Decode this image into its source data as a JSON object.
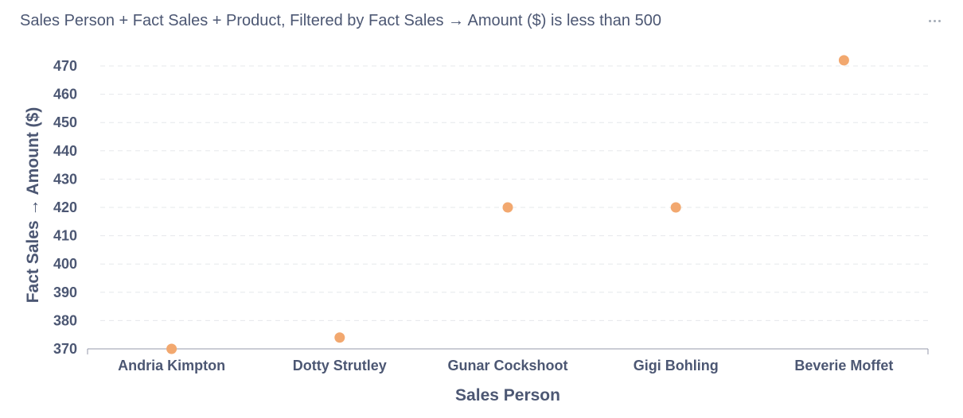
{
  "card": {
    "title": "Sales Person + Fact Sales + Product, Filtered by Fact Sales → Amount ($) is less than 500",
    "menu_icon": "more-horizontal-icon"
  },
  "chart_data": {
    "type": "scatter",
    "title": "Sales Person + Fact Sales + Product, Filtered by Fact Sales → Amount ($) is less than 500",
    "xlabel": "Sales Person",
    "ylabel": "Fact Sales → Amount ($)",
    "categories": [
      "Andria Kimpton",
      "Dotty Strutley",
      "Gunar Cockshoot",
      "Gigi Bohling",
      "Beverie Moffet"
    ],
    "values": [
      370,
      374,
      420,
      420,
      472
    ],
    "ylim": [
      370,
      470
    ],
    "yticks": [
      370,
      380,
      390,
      400,
      410,
      420,
      430,
      440,
      450,
      460,
      470
    ],
    "grid": true,
    "point_color": "#f2a86f",
    "gridline_color": "#e6e8eb",
    "text_color": "#4c5773",
    "axis_color": "#949aab"
  }
}
